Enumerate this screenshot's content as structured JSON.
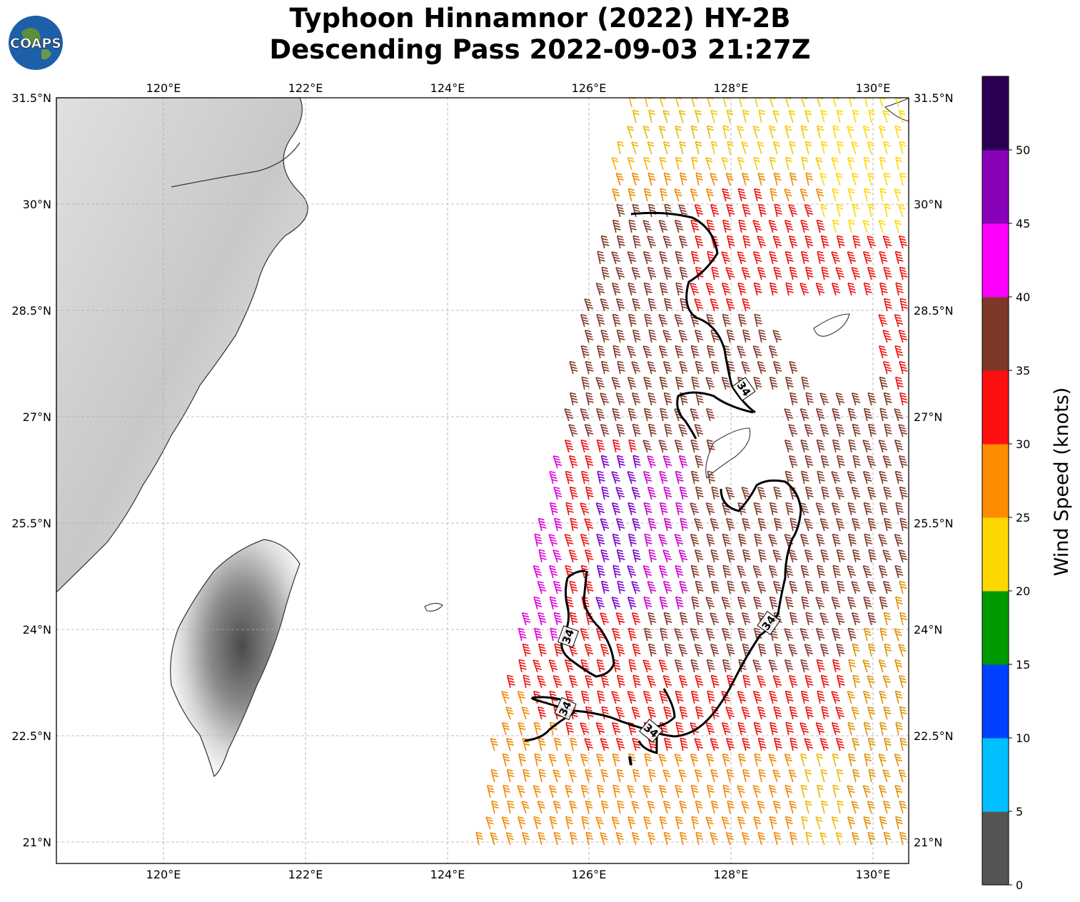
{
  "title": {
    "line1": "Typhoon Hinnamnor (2022) HY-2B",
    "line2": "Descending Pass 2022-09-03 21:27Z"
  },
  "logo": {
    "text": "COAPS"
  },
  "map": {
    "lon_range": [
      118.5,
      130.5
    ],
    "lat_range": [
      20.7,
      31.5
    ],
    "lon_ticks": [
      "120°E",
      "122°E",
      "124°E",
      "126°E",
      "128°E",
      "130°E"
    ],
    "lat_ticks": [
      "31.5°N",
      "30°N",
      "28.5°N",
      "27°N",
      "25.5°N",
      "24°N",
      "22.5°N",
      "21°N"
    ],
    "contour_value": "34",
    "contour_labels": [
      "34",
      "34",
      "34",
      "34",
      "34"
    ]
  },
  "colorbar": {
    "label": "Wind Speed (knots)",
    "ticks": [
      "0",
      "5",
      "10",
      "15",
      "20",
      "25",
      "30",
      "35",
      "40",
      "45",
      "50"
    ],
    "colors": [
      "#555555",
      "#00bfff",
      "#0040ff",
      "#009900",
      "#ffd700",
      "#ff8c00",
      "#ff1010",
      "#7f3828",
      "#ff00ff",
      "#8800b8",
      "#2a0055"
    ]
  }
}
